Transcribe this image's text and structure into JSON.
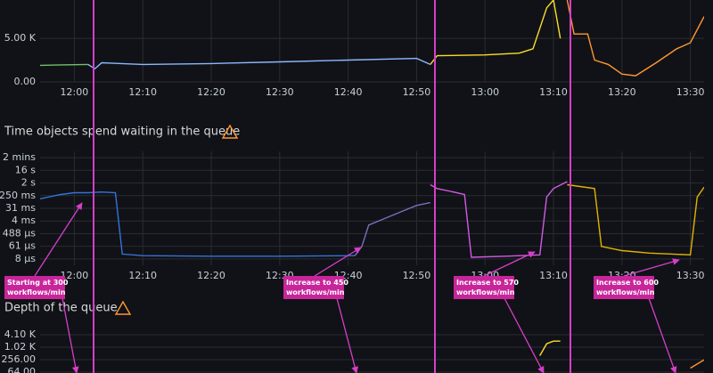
{
  "chart_data": [
    {
      "type": "line",
      "log_scale": false,
      "xlim": [
        "11:55",
        "13:32"
      ],
      "xticks": [
        "12:00",
        "12:10",
        "12:20",
        "12:30",
        "12:40",
        "12:50",
        "13:00",
        "13:10",
        "13:20",
        "13:30"
      ],
      "ylim": [
        0,
        9400
      ],
      "yticks": [
        {
          "value": 5000,
          "label": "5.00 K"
        },
        {
          "value": 0,
          "label": "0.00"
        }
      ],
      "series": [
        {
          "color": "#73bf69",
          "x": [
            "11:55",
            "11:58",
            "12:02"
          ],
          "values": [
            1900,
            1950,
            2000
          ]
        },
        {
          "color": "#8ab8ff",
          "x": [
            "12:02",
            "12:03",
            "12:04",
            "12:10",
            "12:20",
            "12:30",
            "12:40",
            "12:50",
            "12:52"
          ],
          "values": [
            2000,
            1500,
            2200,
            2000,
            2100,
            2300,
            2500,
            2700,
            2000
          ]
        },
        {
          "color": "#fade2a",
          "x": [
            "12:52",
            "12:53",
            "13:00",
            "13:05",
            "13:07",
            "13:09",
            "13:10",
            "13:11"
          ],
          "values": [
            2000,
            3000,
            3100,
            3300,
            3800,
            8500,
            9400,
            5000
          ]
        },
        {
          "color": "#ff9830",
          "x": [
            "13:12",
            "13:13",
            "13:15",
            "13:16",
            "13:18",
            "13:20",
            "13:22",
            "13:25",
            "13:28",
            "13:30",
            "13:32"
          ],
          "values": [
            9400,
            5500,
            5500,
            2500,
            2000,
            900,
            700,
            2200,
            3800,
            4500,
            7500
          ]
        }
      ]
    },
    {
      "type": "line",
      "log_scale": true,
      "title": "Time objects spend waiting in the queue",
      "xlim": [
        "11:55",
        "13:32"
      ],
      "xticks": [
        "12:00",
        "12:10",
        "12:20",
        "12:30",
        "12:40",
        "12:50",
        "13:00",
        "13:10",
        "13:20",
        "13:30"
      ],
      "ylim": [
        2.7e-06,
        360
      ],
      "yticks": [
        {
          "value": 128,
          "label": "2 mins"
        },
        {
          "value": 16,
          "label": "16 s"
        },
        {
          "value": 2,
          "label": "2 s"
        },
        {
          "value": 0.25,
          "label": "250 ms"
        },
        {
          "value": 0.03125,
          "label": "31 ms"
        },
        {
          "value": 0.0039,
          "label": "4 ms"
        },
        {
          "value": 0.000488,
          "label": "488 µs"
        },
        {
          "value": 6.1e-05,
          "label": "61 µs"
        },
        {
          "value": 7.6e-06,
          "label": "8 µs"
        }
      ],
      "series": [
        {
          "color": "#3274d9",
          "x": [
            "11:55",
            "11:58",
            "12:00",
            "12:02",
            "12:04",
            "12:06",
            "12:07",
            "12:10",
            "12:20",
            "12:30",
            "12:41"
          ],
          "values": [
            0.15,
            0.3,
            0.4,
            0.4,
            0.45,
            0.4,
            1.7e-05,
            1.3e-05,
            1.2e-05,
            1.2e-05,
            1.3e-05
          ]
        },
        {
          "color": "#7b6dbf",
          "x": [
            "12:41",
            "12:42",
            "12:43",
            "12:45",
            "12:48",
            "12:50",
            "12:52"
          ],
          "values": [
            1.3e-05,
            6e-05,
            0.002,
            0.005,
            0.02,
            0.05,
            0.08
          ]
        },
        {
          "color": "#d15ae5",
          "x": [
            "12:52",
            "12:53",
            "12:55",
            "12:57",
            "12:58",
            "13:03",
            "13:08",
            "13:09",
            "13:10",
            "13:12"
          ],
          "values": [
            1.5,
            0.8,
            0.5,
            0.3,
            1e-05,
            1.2e-05,
            1.5e-05,
            0.2,
            0.8,
            2.5
          ]
        },
        {
          "color": "#e0b400",
          "x": [
            "13:12",
            "13:16",
            "13:17",
            "13:20",
            "13:24",
            "13:30",
            "13:31",
            "13:32"
          ],
          "values": [
            1.5,
            0.8,
            6e-05,
            3e-05,
            2e-05,
            1.5e-05,
            0.2,
            1
          ]
        }
      ]
    },
    {
      "type": "line",
      "log_scale": true,
      "title": "Depth of the queue",
      "xlim": [
        "11:55",
        "13:32"
      ],
      "ylim": [
        16,
        8192
      ],
      "yticks": [
        {
          "value": 4096,
          "label": "4.10 K"
        },
        {
          "value": 1024,
          "label": "1.02 K"
        },
        {
          "value": 256,
          "label": "256.00"
        },
        {
          "value": 64,
          "label": "64.00"
        }
      ],
      "series": [
        {
          "color": "#fade2a",
          "x": [
            "13:08",
            "13:09",
            "13:10",
            "13:11"
          ],
          "values": [
            400,
            1500,
            2000,
            2000
          ]
        },
        {
          "color": "#ff9830",
          "x": [
            "13:30",
            "13:32"
          ],
          "values": [
            100,
            250
          ]
        }
      ]
    }
  ],
  "annotations": [
    {
      "lines": [
        "Starting at 300",
        "workflows/min"
      ]
    },
    {
      "lines": [
        "Increase to 450",
        "workflows/min"
      ]
    },
    {
      "lines": [
        "Increase to 570",
        "workflows/min"
      ]
    },
    {
      "lines": [
        "Increase to 600",
        "workflows/min"
      ]
    }
  ]
}
